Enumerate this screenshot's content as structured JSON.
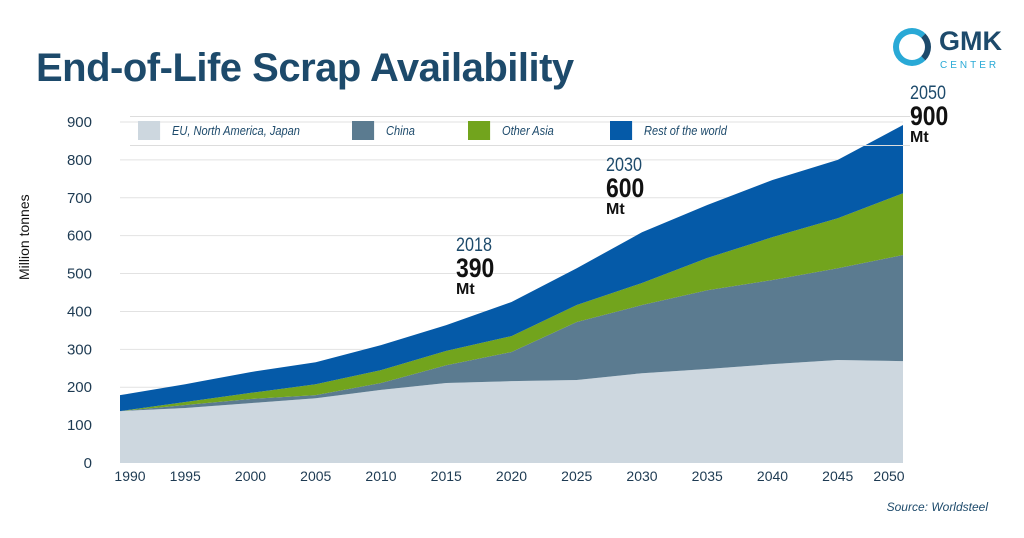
{
  "title": "End-of-Life Scrap Availability",
  "logo": {
    "text": "GMK",
    "subtext": "CENTER"
  },
  "source": "Source: Worldsteel",
  "annotations": [
    {
      "year": "2018",
      "value": "390",
      "unit": "Mt"
    },
    {
      "year": "2030",
      "value": "600",
      "unit": "Mt"
    },
    {
      "year": "2050",
      "value": "900",
      "unit": "Mt"
    }
  ],
  "chart_data": {
    "type": "area",
    "stacked": true,
    "title": "End-of-Life Scrap Availability",
    "xlabel": "",
    "ylabel": "Million tonnes",
    "xlim": [
      1990,
      2050
    ],
    "ylim": [
      0,
      900
    ],
    "x": [
      1990,
      1995,
      2000,
      2005,
      2010,
      2015,
      2020,
      2025,
      2030,
      2035,
      2040,
      2045,
      2050
    ],
    "xticks": [
      "1990",
      "1995",
      "2000",
      "2005",
      "2010",
      "2015",
      "2020",
      "2025",
      "2030",
      "2035",
      "2040",
      "2045",
      "2050"
    ],
    "yticks": [
      "0",
      "100",
      "200",
      "300",
      "400",
      "500",
      "600",
      "700",
      "800",
      "900"
    ],
    "grid": "horizontal",
    "legend": "top",
    "series": [
      {
        "name": "EU, North America, Japan",
        "color": "#cdd7df",
        "values": [
          137,
          145,
          158,
          171,
          193,
          211,
          216,
          219,
          237,
          248,
          261,
          272,
          269
        ]
      },
      {
        "name": "China",
        "color": "#5b7b90",
        "values": [
          0,
          8,
          11,
          8,
          18,
          47,
          77,
          153,
          180,
          208,
          222,
          242,
          280
        ]
      },
      {
        "name": "Other Asia",
        "color": "#72a41d",
        "values": [
          0,
          8,
          16,
          29,
          34,
          38,
          42,
          45,
          58,
          85,
          113,
          132,
          163
        ]
      },
      {
        "name": "Rest of the world",
        "color": "#055aa8",
        "values": [
          42,
          47,
          55,
          58,
          66,
          68,
          90,
          97,
          134,
          140,
          151,
          154,
          180
        ]
      }
    ]
  }
}
